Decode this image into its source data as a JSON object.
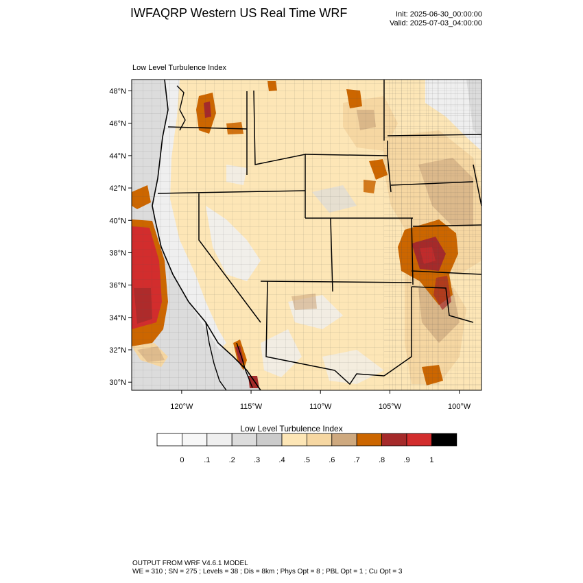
{
  "header": {
    "title": "IWFAQRP Western US Real Time WRF",
    "init": "Init: 2025-06-30_00:00:00",
    "valid": "Valid: 2025-07-03_04:00:00"
  },
  "map": {
    "subtitle": "Low Level Turbulence Index",
    "lat_labels": [
      "48°N",
      "46°N",
      "44°N",
      "42°N",
      "40°N",
      "38°N",
      "36°N",
      "34°N",
      "32°N",
      "30°N"
    ],
    "lon_labels": [
      "120°W",
      "115°W",
      "110°W",
      "105°W",
      "100°W"
    ],
    "lat_values": [
      48,
      46,
      44,
      42,
      40,
      38,
      36,
      34,
      32,
      30
    ],
    "lon_values": [
      -120,
      -115,
      -110,
      -105,
      -100
    ],
    "extent": {
      "lon_min": -123.6,
      "lon_max": -98.4,
      "lat_min": 29.5,
      "lat_max": 48.7
    }
  },
  "colorbar": {
    "title": "Low Level Turbulence Index",
    "colors": [
      "#ffffff",
      "#f7f7f7",
      "#efefef",
      "#dcdcdc",
      "#cbcbcb",
      "#fde6b6",
      "#f6d7a2",
      "#cea97f",
      "#cc6600",
      "#a52a2a",
      "#d22d2d",
      "#000000"
    ],
    "labels": [
      "0",
      ".1",
      ".2",
      ".3",
      ".4",
      ".5",
      ".6",
      ".7",
      ".8",
      ".9",
      "1"
    ]
  },
  "footer": {
    "line1": "OUTPUT FROM WRF V4.6.1 MODEL",
    "line2": "WE = 310 ; SN = 275 ; Levels = 38 ; Dis = 8km ; Phys Opt = 8 ; PBL Opt = 1 ; Cu Opt = 3"
  }
}
